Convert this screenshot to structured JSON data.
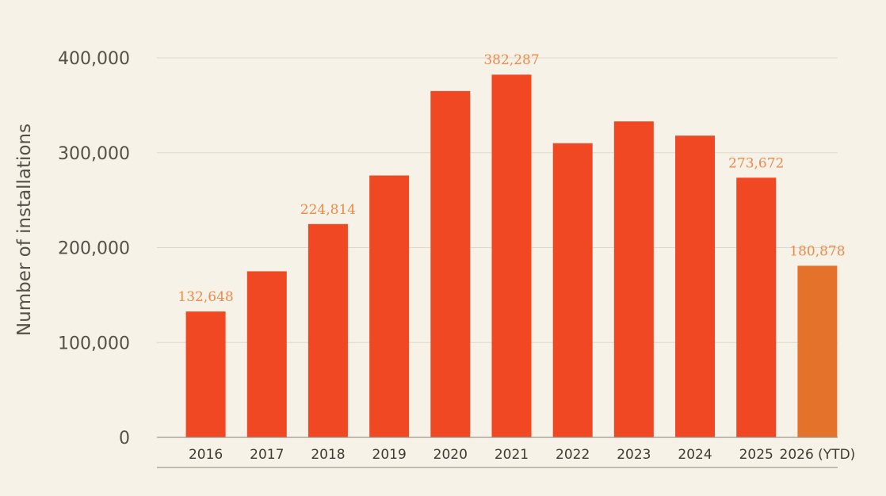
{
  "chart_data": {
    "type": "bar",
    "ylabel": "Number of installations",
    "xlabel": "",
    "ylim": [
      0,
      400000
    ],
    "yticks": [
      0,
      100000,
      200000,
      300000,
      400000
    ],
    "ytick_labels": [
      "0",
      "100,000",
      "200,000",
      "300,000",
      "400,000"
    ],
    "grid": true,
    "categories": [
      "2016",
      "2017",
      "2018",
      "2019",
      "2020",
      "2021",
      "2022",
      "2023",
      "2024",
      "2025",
      "2026 (YTD)"
    ],
    "values": [
      132648,
      175000,
      224814,
      276000,
      365000,
      382287,
      310000,
      333000,
      318000,
      273672,
      180878
    ],
    "data_labels": [
      "132,648",
      "",
      "224,814",
      "",
      "",
      "382,287",
      "",
      "",
      "",
      "273,672",
      "180,878"
    ],
    "colors": {
      "bar": "#ef4823",
      "highlight_bar": "#e4722a",
      "data_label": "#ee8a4a",
      "grid": "#ddd8cc",
      "axis": "#9e978c",
      "background": "#f7f2e8"
    },
    "highlight_index": 10
  }
}
